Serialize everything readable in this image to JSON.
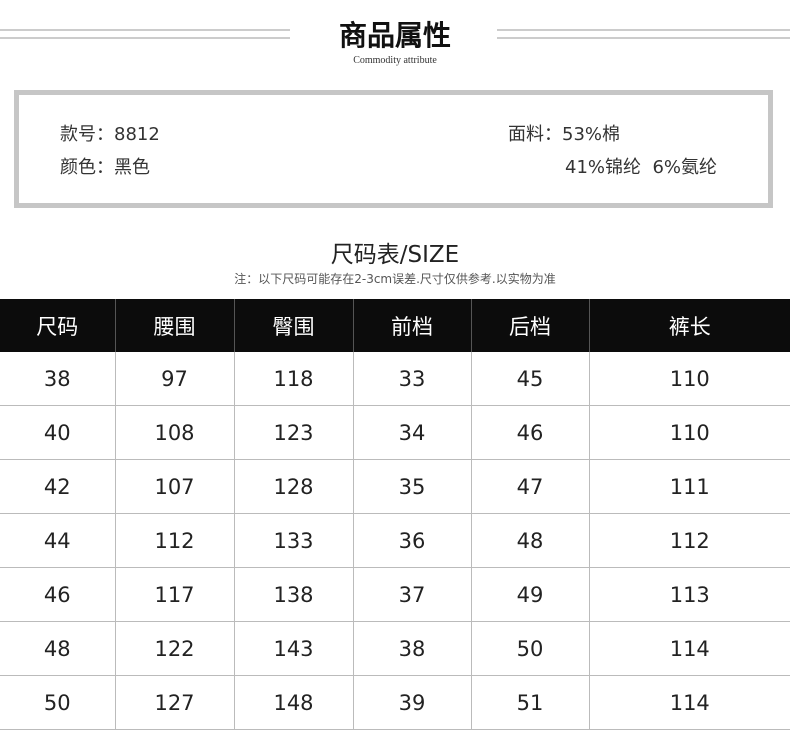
{
  "header": {
    "title": "商品属性",
    "subtitle": "Commodity attribute"
  },
  "attributes": {
    "style_no": "款号：8812",
    "color": "颜色：黑色",
    "fabric_1": "面料：53%棉",
    "fabric_2": "41%锦纶  6%氨纶"
  },
  "size_chart": {
    "title": "尺码表/SIZE",
    "note": "注：以下尺码可能存在2-3cm误差.尺寸仅供参考.以实物为准",
    "columns": [
      "尺码",
      "腰围",
      "臀围",
      "前档",
      "后档",
      "裤长"
    ],
    "rows": [
      [
        "38",
        "97",
        "118",
        "33",
        "45",
        "110"
      ],
      [
        "40",
        "108",
        "123",
        "34",
        "46",
        "110"
      ],
      [
        "42",
        "107",
        "128",
        "35",
        "47",
        "111"
      ],
      [
        "44",
        "112",
        "133",
        "36",
        "48",
        "112"
      ],
      [
        "46",
        "117",
        "138",
        "37",
        "49",
        "113"
      ],
      [
        "48",
        "122",
        "143",
        "38",
        "50",
        "114"
      ],
      [
        "50",
        "127",
        "148",
        "39",
        "51",
        "114"
      ]
    ]
  }
}
